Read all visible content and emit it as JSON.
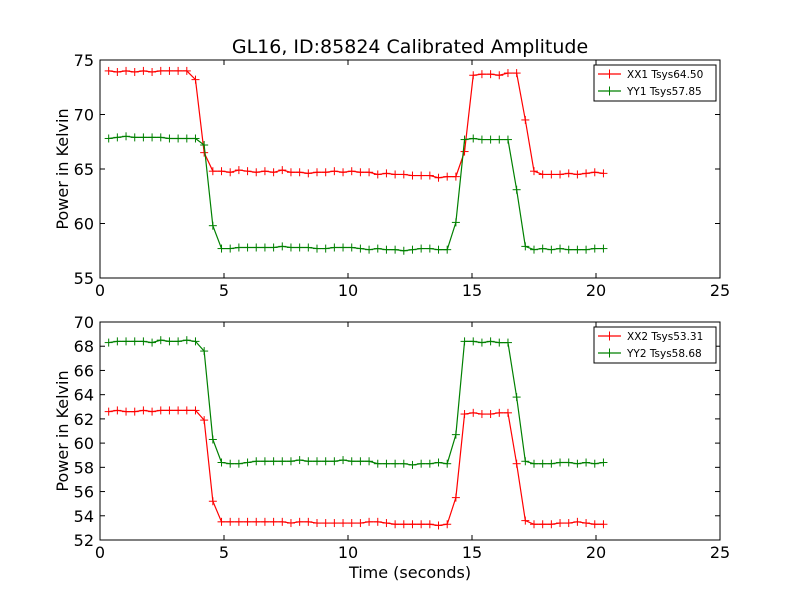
{
  "chart_data": [
    {
      "type": "line",
      "title": "GL16, ID:85824 Calibrated Amplitude",
      "xlabel": "",
      "ylabel": "Power in Kelvin",
      "xlim": [
        0,
        25
      ],
      "ylim": [
        55,
        75
      ],
      "xticks": [
        "0",
        "5",
        "10",
        "15",
        "20",
        "25"
      ],
      "yticks": [
        "55",
        "60",
        "65",
        "70",
        "75"
      ],
      "grid": false,
      "legend_position": "top-right",
      "x": [
        0.35,
        0.7,
        1.05,
        1.4,
        1.75,
        2.1,
        2.45,
        2.8,
        3.15,
        3.5,
        3.85,
        4.2,
        4.55,
        4.9,
        5.25,
        5.6,
        5.95,
        6.3,
        6.65,
        7.0,
        7.35,
        7.7,
        8.05,
        8.4,
        8.75,
        9.1,
        9.45,
        9.8,
        10.15,
        10.5,
        10.85,
        11.2,
        11.55,
        11.9,
        12.25,
        12.6,
        12.95,
        13.3,
        13.65,
        14.0,
        14.35,
        14.7,
        15.05,
        15.4,
        15.75,
        16.1,
        16.45,
        16.8,
        17.15,
        17.5,
        17.85,
        18.2,
        18.55,
        18.9,
        19.25,
        19.6,
        19.95,
        20.3
      ],
      "series": [
        {
          "name": "XX1 Tsys64.50",
          "color": "#ff0000",
          "values": [
            74.0,
            73.9,
            74.0,
            73.9,
            74.0,
            73.9,
            74.0,
            74.0,
            74.0,
            74.0,
            73.2,
            66.5,
            64.8,
            64.8,
            64.7,
            64.9,
            64.8,
            64.7,
            64.8,
            64.7,
            64.9,
            64.7,
            64.7,
            64.6,
            64.7,
            64.7,
            64.8,
            64.7,
            64.8,
            64.7,
            64.7,
            64.5,
            64.6,
            64.5,
            64.5,
            64.4,
            64.4,
            64.4,
            64.2,
            64.3,
            64.3,
            66.6,
            73.6,
            73.7,
            73.7,
            73.6,
            73.8,
            73.8,
            69.5,
            64.8,
            64.5,
            64.5,
            64.5,
            64.6,
            64.5,
            64.6,
            64.7,
            64.6
          ]
        },
        {
          "name": "YY1 Tsys57.85",
          "color": "#008000",
          "values": [
            67.8,
            67.9,
            68.0,
            67.9,
            67.9,
            67.9,
            67.9,
            67.8,
            67.8,
            67.8,
            67.8,
            67.2,
            59.8,
            57.7,
            57.7,
            57.8,
            57.8,
            57.8,
            57.8,
            57.8,
            57.9,
            57.8,
            57.8,
            57.8,
            57.7,
            57.7,
            57.8,
            57.8,
            57.8,
            57.7,
            57.6,
            57.7,
            57.6,
            57.6,
            57.5,
            57.6,
            57.7,
            57.7,
            57.6,
            57.6,
            60.1,
            67.7,
            67.8,
            67.7,
            67.7,
            67.7,
            67.7,
            63.1,
            57.9,
            57.6,
            57.7,
            57.6,
            57.7,
            57.6,
            57.6,
            57.6,
            57.7,
            57.7
          ]
        }
      ]
    },
    {
      "type": "line",
      "title": "",
      "xlabel": "Time (seconds)",
      "ylabel": "Power in Kelvin",
      "xlim": [
        0,
        25
      ],
      "ylim": [
        52,
        70
      ],
      "xticks": [
        "0",
        "5",
        "10",
        "15",
        "20",
        "25"
      ],
      "yticks": [
        "52",
        "54",
        "56",
        "58",
        "60",
        "62",
        "64",
        "66",
        "68",
        "70"
      ],
      "grid": false,
      "legend_position": "top-right",
      "x": [
        0.35,
        0.7,
        1.05,
        1.4,
        1.75,
        2.1,
        2.45,
        2.8,
        3.15,
        3.5,
        3.85,
        4.2,
        4.55,
        4.9,
        5.25,
        5.6,
        5.95,
        6.3,
        6.65,
        7.0,
        7.35,
        7.7,
        8.05,
        8.4,
        8.75,
        9.1,
        9.45,
        9.8,
        10.15,
        10.5,
        10.85,
        11.2,
        11.55,
        11.9,
        12.25,
        12.6,
        12.95,
        13.3,
        13.65,
        14.0,
        14.35,
        14.7,
        15.05,
        15.4,
        15.75,
        16.1,
        16.45,
        16.8,
        17.15,
        17.5,
        17.85,
        18.2,
        18.55,
        18.9,
        19.25,
        19.6,
        19.95,
        20.3
      ],
      "series": [
        {
          "name": "XX2 Tsys53.31",
          "color": "#ff0000",
          "values": [
            62.6,
            62.7,
            62.6,
            62.6,
            62.7,
            62.6,
            62.7,
            62.7,
            62.7,
            62.7,
            62.7,
            61.9,
            55.2,
            53.5,
            53.5,
            53.5,
            53.5,
            53.5,
            53.5,
            53.5,
            53.5,
            53.4,
            53.5,
            53.5,
            53.4,
            53.4,
            53.4,
            53.4,
            53.4,
            53.4,
            53.5,
            53.5,
            53.4,
            53.3,
            53.3,
            53.3,
            53.3,
            53.3,
            53.2,
            53.3,
            55.5,
            62.4,
            62.5,
            62.4,
            62.4,
            62.5,
            62.5,
            58.3,
            53.6,
            53.3,
            53.3,
            53.3,
            53.4,
            53.4,
            53.5,
            53.4,
            53.3,
            53.3
          ]
        },
        {
          "name": "YY2 Tsys58.68",
          "color": "#008000",
          "values": [
            68.3,
            68.4,
            68.4,
            68.4,
            68.4,
            68.3,
            68.5,
            68.4,
            68.4,
            68.5,
            68.4,
            67.6,
            60.3,
            58.4,
            58.3,
            58.3,
            58.4,
            58.5,
            58.5,
            58.5,
            58.5,
            58.5,
            58.6,
            58.5,
            58.5,
            58.5,
            58.5,
            58.6,
            58.5,
            58.5,
            58.5,
            58.3,
            58.3,
            58.3,
            58.3,
            58.2,
            58.3,
            58.3,
            58.4,
            58.3,
            60.7,
            68.4,
            68.4,
            68.3,
            68.4,
            68.3,
            68.3,
            63.8,
            58.5,
            58.3,
            58.3,
            58.3,
            58.4,
            58.4,
            58.3,
            58.4,
            58.3,
            58.4
          ]
        }
      ]
    }
  ]
}
